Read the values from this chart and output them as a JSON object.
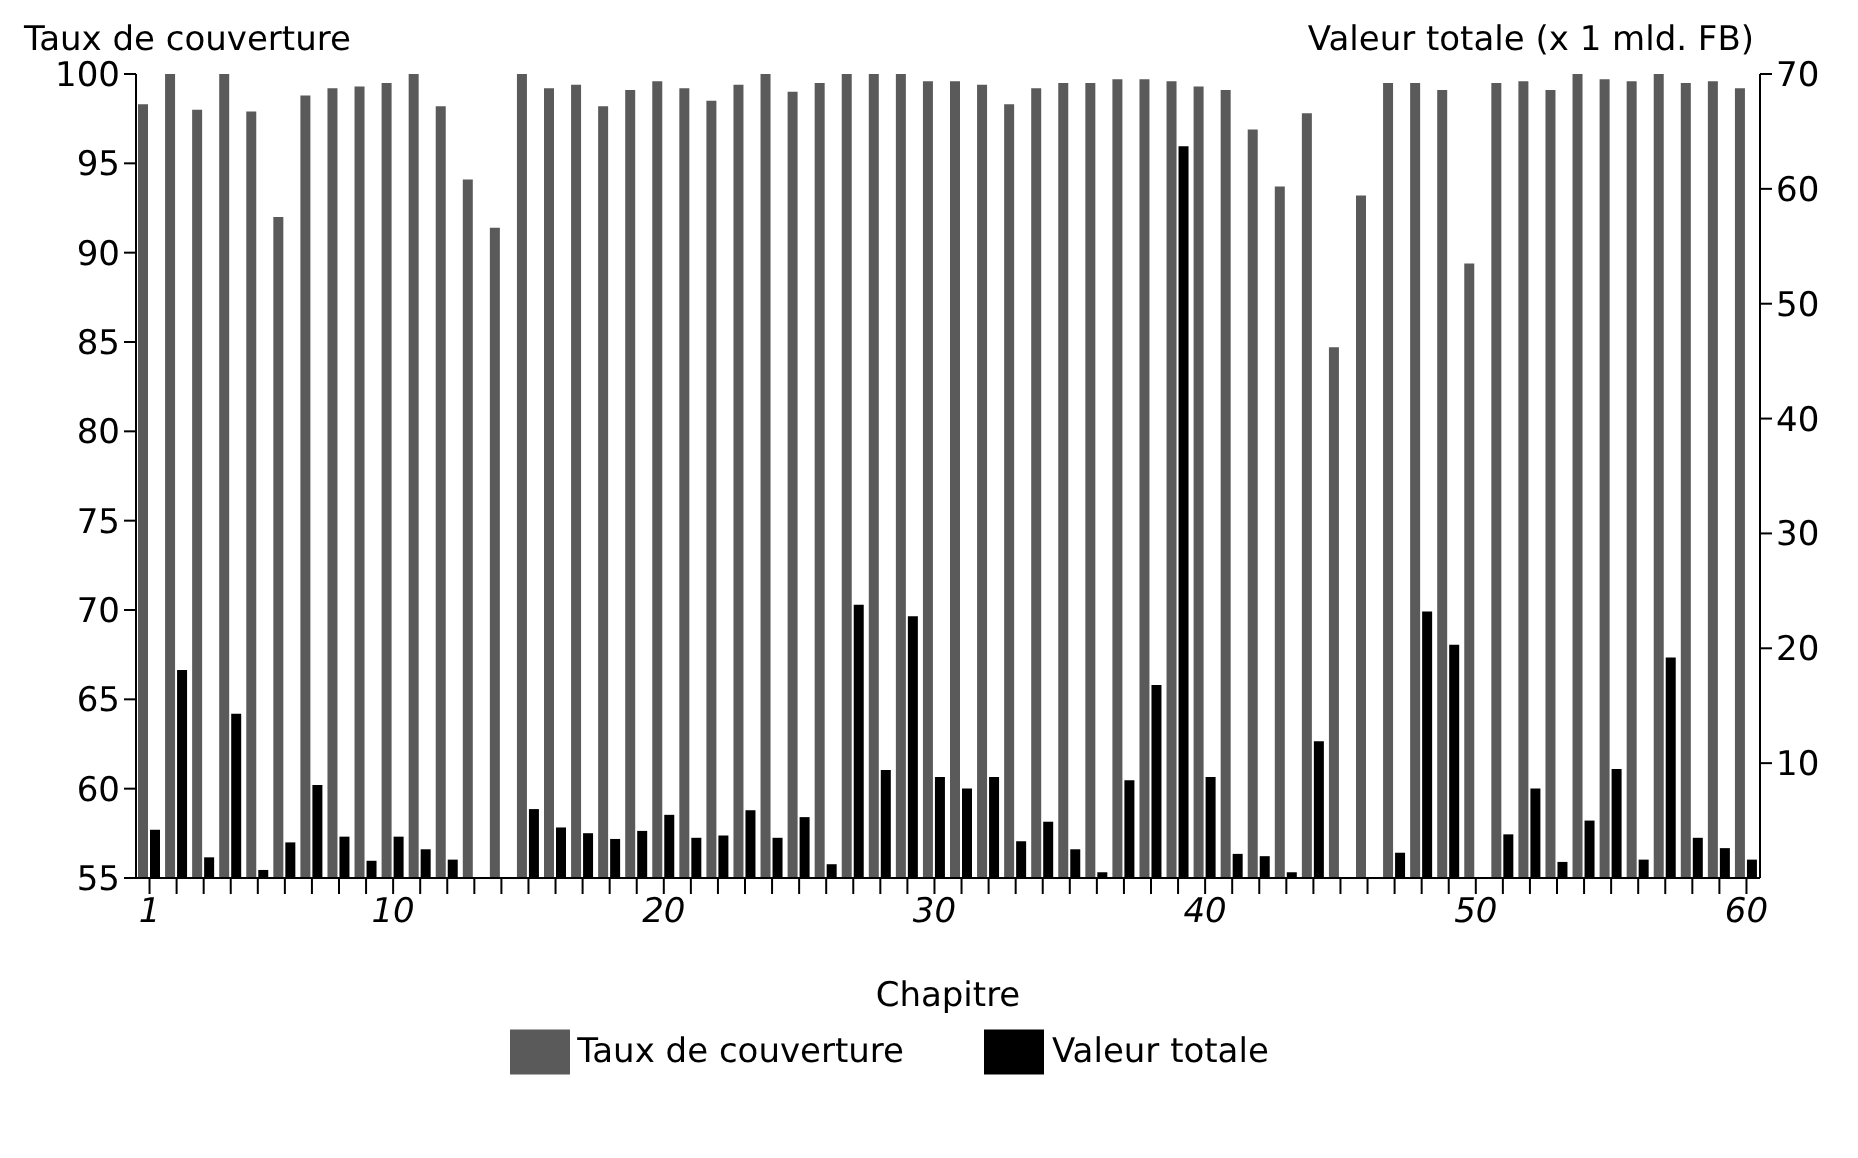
{
  "chart_data": {
    "type": "bar",
    "xlabel": "Chapitre",
    "ylabel": "Taux de couverture",
    "y2label": "Valeur totale (x 1 mld. FB)",
    "x": [
      1,
      2,
      3,
      4,
      5,
      6,
      7,
      8,
      9,
      10,
      11,
      12,
      13,
      14,
      15,
      16,
      17,
      18,
      19,
      20,
      21,
      22,
      23,
      24,
      25,
      26,
      27,
      28,
      29,
      30,
      31,
      32,
      33,
      34,
      35,
      36,
      37,
      38,
      39,
      40,
      41,
      42,
      43,
      44,
      45,
      46,
      47,
      48,
      49,
      50,
      51,
      52,
      53,
      54,
      55,
      56,
      57,
      58,
      59,
      60
    ],
    "series": [
      {
        "name": "Taux de couverture",
        "color": "#5a5a5a",
        "values": [
          98.3,
          100,
          98.0,
          100,
          97.9,
          92.0,
          98.8,
          99.2,
          99.3,
          99.5,
          100,
          98.2,
          94.1,
          91.4,
          100,
          99.2,
          99.4,
          98.2,
          99.1,
          99.6,
          99.2,
          98.5,
          99.4,
          100,
          99.0,
          99.5,
          100,
          100,
          100,
          99.6,
          99.6,
          99.4,
          98.3,
          99.2,
          99.5,
          99.5,
          99.7,
          99.7,
          99.6,
          99.3,
          99.1,
          96.9,
          93.7,
          97.8,
          84.7,
          93.2,
          99.5,
          99.5,
          99.1,
          89.4,
          99.5,
          99.6,
          99.1,
          100,
          99.7,
          99.6,
          100,
          99.5,
          99.6,
          99.2
        ]
      },
      {
        "name": "Valeur totale",
        "color": "#000000",
        "axis": "y2",
        "values": [
          4.2,
          18.1,
          1.8,
          14.3,
          0.7,
          3.1,
          8.1,
          3.6,
          1.5,
          3.6,
          2.5,
          1.6,
          0,
          0,
          6.0,
          4.4,
          3.9,
          3.4,
          4.1,
          5.5,
          3.5,
          3.7,
          5.9,
          3.5,
          5.3,
          1.2,
          23.8,
          9.4,
          22.8,
          8.8,
          7.8,
          8.8,
          3.2,
          4.9,
          2.5,
          0.5,
          8.5,
          16.8,
          63.7,
          8.8,
          2.1,
          1.9,
          0.5,
          11.9,
          0,
          0,
          2.2,
          23.2,
          20.3,
          0,
          3.8,
          7.8,
          1.4,
          5.0,
          9.5,
          1.6,
          19.2,
          3.5,
          2.6,
          1.6
        ]
      }
    ],
    "xlim": [
      0.5,
      60.5
    ],
    "xticks": [
      1,
      {
        "value": 2,
        "label": null
      },
      {
        "value": 3,
        "label": null
      },
      {
        "value": 4,
        "label": null
      },
      {
        "value": 5,
        "label": null
      },
      {
        "value": 6,
        "label": null
      },
      {
        "value": 7,
        "label": null
      },
      {
        "value": 8,
        "label": null
      },
      {
        "value": 9,
        "label": null
      },
      10,
      {
        "value": 11,
        "label": null
      },
      {
        "value": 12,
        "label": null
      },
      {
        "value": 13,
        "label": null
      },
      {
        "value": 14,
        "label": null
      },
      {
        "value": 15,
        "label": null
      },
      {
        "value": 16,
        "label": null
      },
      {
        "value": 17,
        "label": null
      },
      {
        "value": 18,
        "label": null
      },
      {
        "value": 19,
        "label": null
      },
      20,
      {
        "value": 21,
        "label": null
      },
      {
        "value": 22,
        "label": null
      },
      {
        "value": 23,
        "label": null
      },
      {
        "value": 24,
        "label": null
      },
      {
        "value": 25,
        "label": null
      },
      {
        "value": 26,
        "label": null
      },
      {
        "value": 27,
        "label": null
      },
      {
        "value": 28,
        "label": null
      },
      {
        "value": 29,
        "label": null
      },
      30,
      {
        "value": 31,
        "label": null
      },
      {
        "value": 32,
        "label": null
      },
      {
        "value": 33,
        "label": null
      },
      {
        "value": 34,
        "label": null
      },
      {
        "value": 35,
        "label": null
      },
      {
        "value": 36,
        "label": null
      },
      {
        "value": 37,
        "label": null
      },
      {
        "value": 38,
        "label": null
      },
      {
        "value": 39,
        "label": null
      },
      40,
      {
        "value": 41,
        "label": null
      },
      {
        "value": 42,
        "label": null
      },
      {
        "value": 43,
        "label": null
      },
      {
        "value": 44,
        "label": null
      },
      {
        "value": 45,
        "label": null
      },
      {
        "value": 46,
        "label": null
      },
      {
        "value": 47,
        "label": null
      },
      {
        "value": 48,
        "label": null
      },
      {
        "value": 49,
        "label": null
      },
      50,
      {
        "value": 51,
        "label": null
      },
      {
        "value": 52,
        "label": null
      },
      {
        "value": 53,
        "label": null
      },
      {
        "value": 54,
        "label": null
      },
      {
        "value": 55,
        "label": null
      },
      {
        "value": 56,
        "label": null
      },
      {
        "value": 57,
        "label": null
      },
      {
        "value": 58,
        "label": null
      },
      {
        "value": 59,
        "label": null
      },
      60
    ],
    "ylim": [
      55,
      100
    ],
    "yticks": [
      55,
      60,
      65,
      70,
      75,
      80,
      85,
      90,
      95,
      100
    ],
    "y2lim": [
      0,
      70
    ],
    "y2ticks": [
      10,
      20,
      30,
      40,
      50,
      60,
      70
    ],
    "grid": false,
    "legend": "bottom"
  }
}
